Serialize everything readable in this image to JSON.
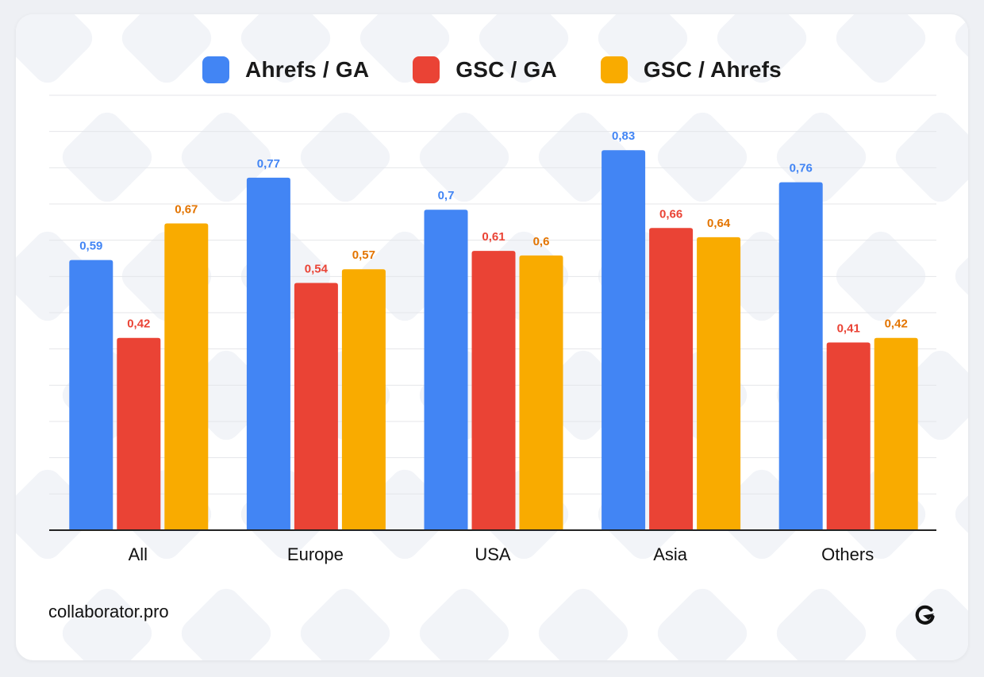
{
  "footer": {
    "site": "collaborator.pro",
    "logo_icon": "collaborator-logo-icon"
  },
  "colors": {
    "ahrefs_ga": "#4285f4",
    "gsc_ga": "#ea4335",
    "gsc_ahrefs": "#f9ab00",
    "label_orange": "#e37400",
    "axis": "#222222",
    "grid": "#e4e6ea"
  },
  "chart_data": {
    "type": "bar",
    "title": "",
    "xlabel": "",
    "ylabel": "",
    "ylim": [
      0,
      0.95
    ],
    "grid": true,
    "legend_position": "top-center",
    "value_labels": true,
    "categories": [
      "All",
      "Europe",
      "USA",
      "Asia",
      "Others"
    ],
    "series": [
      {
        "name": "Ahrefs / GA",
        "color": "#4285f4",
        "label_color": "#4285f4",
        "values": [
          0.59,
          0.77,
          0.7,
          0.83,
          0.76
        ],
        "labels": [
          "0,59",
          "0,77",
          "0,7",
          "0,83",
          "0,76"
        ]
      },
      {
        "name": "GSC / GA",
        "color": "#ea4335",
        "label_color": "#ea4335",
        "values": [
          0.42,
          0.54,
          0.61,
          0.66,
          0.41
        ],
        "labels": [
          "0,42",
          "0,54",
          "0,61",
          "0,66",
          "0,41"
        ]
      },
      {
        "name": "GSC / Ahrefs",
        "color": "#f9ab00",
        "label_color": "#e37400",
        "values": [
          0.67,
          0.57,
          0.6,
          0.64,
          0.42
        ],
        "labels": [
          "0,67",
          "0,57",
          "0,6",
          "0,64",
          "0,42"
        ]
      }
    ]
  }
}
